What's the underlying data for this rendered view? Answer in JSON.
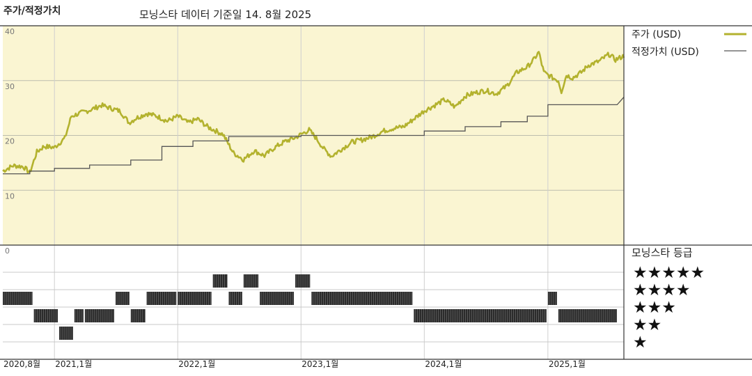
{
  "header": {
    "chart_title": "주가/적정가치",
    "subtitle": "모닝스타 데이터 기준일 14. 8월 2025"
  },
  "legend": {
    "price_label": "주가 (USD)",
    "fair_label": "적정가치 (USD)",
    "rating_title": "모닝스타 등급",
    "stars": [
      "★★★★★",
      "★★★★",
      "★★★",
      "★★",
      "★"
    ]
  },
  "colors": {
    "price": "#b3b22e",
    "fair": "#555555",
    "panel_bg": "#faf5d2",
    "grid": "#cccccc",
    "rating_bar": "#2b2b2b"
  },
  "chart_data": {
    "type": "line",
    "xlim": [
      "2020-08-01",
      "2025-08-14"
    ],
    "ylim": [
      0,
      40
    ],
    "y_ticks": [
      10,
      20,
      30,
      40
    ],
    "x_tick_dates": [
      "2020-08-01",
      "2021-01-01",
      "2022-01-01",
      "2023-01-01",
      "2024-01-01",
      "2025-01-01"
    ],
    "x_tick_labels": [
      "2020,8월",
      "2021,1월",
      "2022,1월",
      "2023,1월",
      "2024,1월",
      "2025,1월"
    ],
    "rating_axis_label": "0",
    "series": [
      {
        "name": "주가 (USD)",
        "points": [
          [
            "2020-08-01",
            13.5
          ],
          [
            "2020-09-01",
            14.5
          ],
          [
            "2020-10-01",
            14.3
          ],
          [
            "2020-10-20",
            13.2
          ],
          [
            "2020-11-10",
            17.0
          ],
          [
            "2020-12-01",
            18.0
          ],
          [
            "2021-01-01",
            17.8
          ],
          [
            "2021-02-01",
            19.5
          ],
          [
            "2021-02-20",
            23.5
          ],
          [
            "2021-03-15",
            24.0
          ],
          [
            "2021-04-15",
            24.6
          ],
          [
            "2021-05-20",
            25.5
          ],
          [
            "2021-06-15",
            25.0
          ],
          [
            "2021-07-15",
            24.4
          ],
          [
            "2021-08-10",
            22.3
          ],
          [
            "2021-09-01",
            23.2
          ],
          [
            "2021-10-01",
            24.0
          ],
          [
            "2021-11-01",
            23.5
          ],
          [
            "2021-12-01",
            22.6
          ],
          [
            "2022-01-01",
            23.5
          ],
          [
            "2022-02-01",
            22.3
          ],
          [
            "2022-03-01",
            23.0
          ],
          [
            "2022-04-01",
            21.5
          ],
          [
            "2022-05-15",
            20.2
          ],
          [
            "2022-06-15",
            16.8
          ],
          [
            "2022-07-15",
            15.6
          ],
          [
            "2022-08-15",
            17.2
          ],
          [
            "2022-09-15",
            16.3
          ],
          [
            "2022-10-15",
            17.8
          ],
          [
            "2022-11-15",
            18.9
          ],
          [
            "2022-12-15",
            19.6
          ],
          [
            "2023-01-10",
            20.5
          ],
          [
            "2023-01-25",
            21.0
          ],
          [
            "2023-02-15",
            19.5
          ],
          [
            "2023-03-10",
            17.5
          ],
          [
            "2023-04-01",
            16.2
          ],
          [
            "2023-05-01",
            17.5
          ],
          [
            "2023-06-01",
            18.8
          ],
          [
            "2023-07-01",
            19.2
          ],
          [
            "2023-08-01",
            19.8
          ],
          [
            "2023-09-01",
            20.8
          ],
          [
            "2023-10-01",
            21.3
          ],
          [
            "2023-11-01",
            21.6
          ],
          [
            "2023-12-01",
            23.0
          ],
          [
            "2024-01-01",
            24.5
          ],
          [
            "2024-02-01",
            25.5
          ],
          [
            "2024-03-01",
            26.5
          ],
          [
            "2024-04-01",
            25.2
          ],
          [
            "2024-05-01",
            27.2
          ],
          [
            "2024-06-01",
            27.8
          ],
          [
            "2024-07-01",
            28.2
          ],
          [
            "2024-08-01",
            27.6
          ],
          [
            "2024-09-01",
            29.0
          ],
          [
            "2024-10-01",
            31.5
          ],
          [
            "2024-11-01",
            32.5
          ],
          [
            "2024-11-20",
            33.8
          ],
          [
            "2024-12-05",
            35.2
          ],
          [
            "2024-12-20",
            31.5
          ],
          [
            "2025-01-15",
            30.5
          ],
          [
            "2025-02-01",
            30.0
          ],
          [
            "2025-02-10",
            28.0
          ],
          [
            "2025-02-25",
            31.0
          ],
          [
            "2025-03-15",
            30.5
          ],
          [
            "2025-04-10",
            31.5
          ],
          [
            "2025-05-01",
            32.8
          ],
          [
            "2025-06-01",
            33.5
          ],
          [
            "2025-07-01",
            34.8
          ],
          [
            "2025-07-20",
            33.8
          ],
          [
            "2025-08-14",
            34.5
          ]
        ]
      },
      {
        "name": "적정가치 (USD)",
        "points": [
          [
            "2020-08-01",
            13.0
          ],
          [
            "2020-10-20",
            13.0
          ],
          [
            "2020-10-20",
            13.5
          ],
          [
            "2021-01-01",
            13.5
          ],
          [
            "2021-01-01",
            14.0
          ],
          [
            "2021-04-15",
            14.0
          ],
          [
            "2021-04-15",
            14.6
          ],
          [
            "2021-08-15",
            14.6
          ],
          [
            "2021-08-15",
            15.5
          ],
          [
            "2021-11-15",
            15.5
          ],
          [
            "2021-11-15",
            18.0
          ],
          [
            "2022-02-15",
            18.0
          ],
          [
            "2022-02-15",
            19.0
          ],
          [
            "2022-06-01",
            19.0
          ],
          [
            "2022-06-01",
            19.8
          ],
          [
            "2023-01-01",
            19.8
          ],
          [
            "2023-01-01",
            20.0
          ],
          [
            "2024-01-01",
            20.0
          ],
          [
            "2024-01-01",
            20.8
          ],
          [
            "2024-05-01",
            20.8
          ],
          [
            "2024-05-01",
            21.6
          ],
          [
            "2024-08-15",
            21.6
          ],
          [
            "2024-08-15",
            22.5
          ],
          [
            "2024-11-01",
            22.5
          ],
          [
            "2024-11-01",
            23.5
          ],
          [
            "2025-01-01",
            23.5
          ],
          [
            "2025-01-01",
            25.6
          ],
          [
            "2025-07-25",
            25.6
          ],
          [
            "2025-08-14",
            27.0
          ]
        ]
      }
    ],
    "star_ratings": [
      [
        "2020-08-01",
        3
      ],
      [
        "2020-11-01",
        2
      ],
      [
        "2021-01-15",
        1
      ],
      [
        "2021-03-01",
        2
      ],
      [
        "2021-04-01",
        2
      ],
      [
        "2021-07-01",
        3
      ],
      [
        "2021-08-15",
        2
      ],
      [
        "2021-10-01",
        3
      ],
      [
        "2022-01-01",
        3
      ],
      [
        "2022-04-15",
        4
      ],
      [
        "2022-06-01",
        3
      ],
      [
        "2022-07-15",
        4
      ],
      [
        "2022-09-01",
        3
      ],
      [
        "2022-12-15",
        4
      ],
      [
        "2023-02-01",
        3
      ],
      [
        "2023-12-01",
        2
      ],
      [
        "2025-01-01",
        3
      ],
      [
        "2025-02-01",
        2
      ]
    ]
  }
}
